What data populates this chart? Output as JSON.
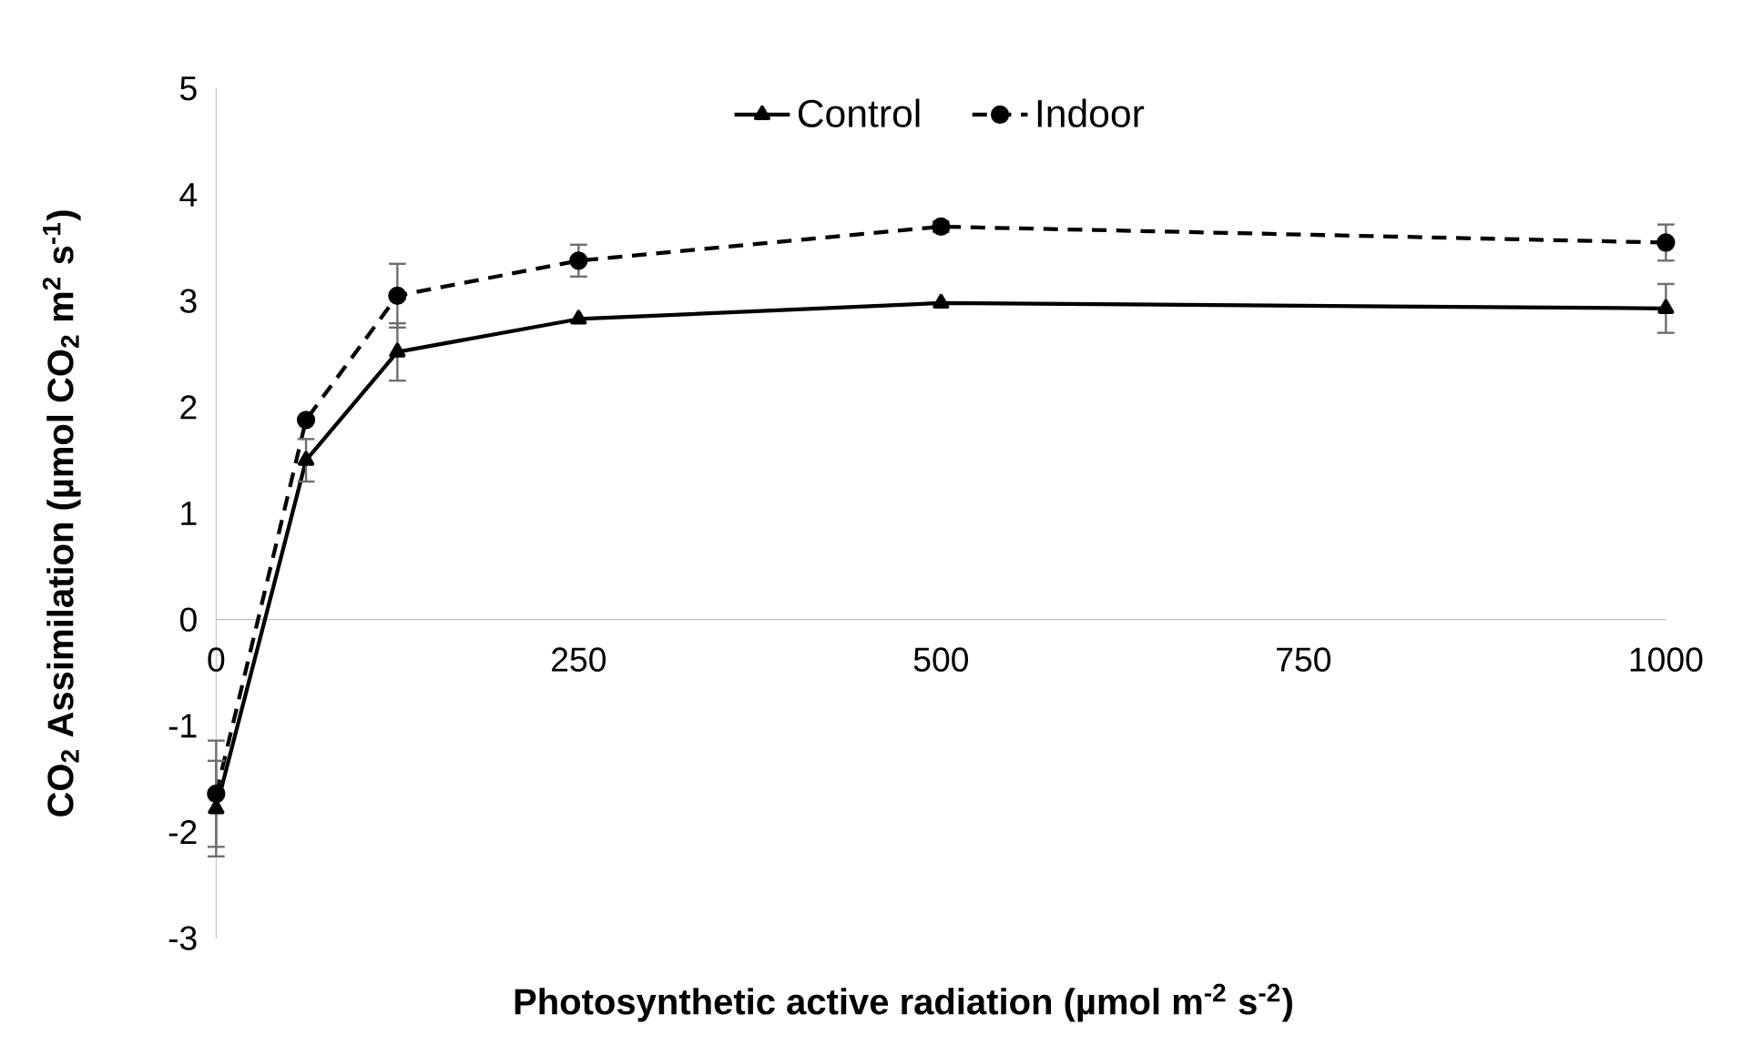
{
  "chart_data": {
    "type": "line",
    "xlabel": "Photosynthetic active radiation (µmol m$^{-2}$ s$^{-2}$)",
    "ylabel": "CO$_{2}$ Assimilation (µmol CO$_{2}$ m$^{2}$ s$^{-1}$)",
    "xlim": [
      0,
      1000
    ],
    "xticks": [
      0,
      250,
      500,
      750,
      1000
    ],
    "ylim": [
      -3,
      5
    ],
    "yticks": [
      -3,
      -2,
      -1,
      0,
      1,
      2,
      3,
      4,
      5
    ],
    "grid": false,
    "legend": "top",
    "series": [
      {
        "name": "Control",
        "color": "#000000",
        "marker": "triangle",
        "line_style": "solid",
        "x": [
          0,
          62,
          125,
          250,
          500,
          1000
        ],
        "values": [
          -1.78,
          1.5,
          2.52,
          2.83,
          2.98,
          2.93
        ],
        "errors": [
          0.45,
          0.2,
          0.27,
          null,
          null,
          0.23
        ]
      },
      {
        "name": "Indoor",
        "color": "#000000",
        "marker": "circle",
        "line_style": "dashed",
        "x": [
          0,
          62,
          125,
          250,
          500,
          1000
        ],
        "values": [
          -1.64,
          1.88,
          3.05,
          3.38,
          3.7,
          3.55
        ],
        "errors": [
          0.5,
          null,
          0.3,
          0.15,
          0.05,
          0.17
        ]
      }
    ]
  }
}
